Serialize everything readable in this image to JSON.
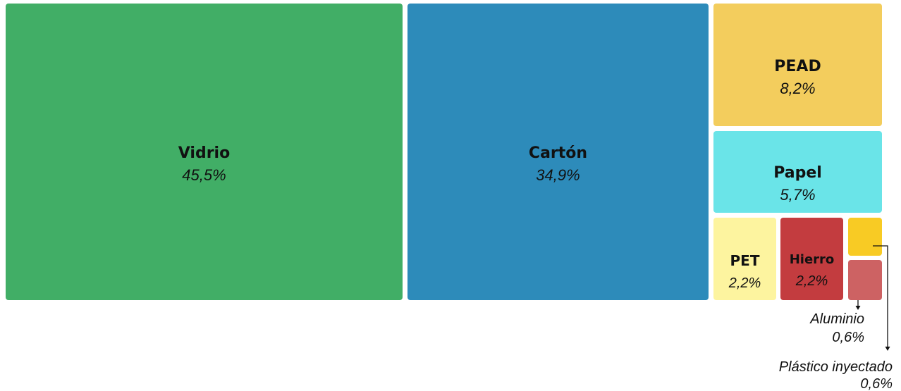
{
  "chart_data": {
    "type": "treemap",
    "title": "",
    "items": [
      {
        "name": "Vidrio",
        "value": 45.5,
        "label": "45,5%",
        "color": "#41ae66"
      },
      {
        "name": "Cartón",
        "value": 34.9,
        "label": "34,9%",
        "color": "#2d8bba"
      },
      {
        "name": "PEAD",
        "value": 8.2,
        "label": "8,2%",
        "color": "#f3cd5d"
      },
      {
        "name": "Papel",
        "value": 5.7,
        "label": "5,7%",
        "color": "#6ae4e8"
      },
      {
        "name": "PET",
        "value": 2.2,
        "label": "2,2%",
        "color": "#fdf49f"
      },
      {
        "name": "Hierro",
        "value": 2.2,
        "label": "2,2%",
        "color": "#c33c3f"
      },
      {
        "name": "Plástico inyectado",
        "value": 0.6,
        "label": "0,6%",
        "color": "#f8cb24"
      },
      {
        "name": "Aluminio",
        "value": 0.6,
        "label": "0,6%",
        "color": "#cd6263"
      }
    ]
  }
}
